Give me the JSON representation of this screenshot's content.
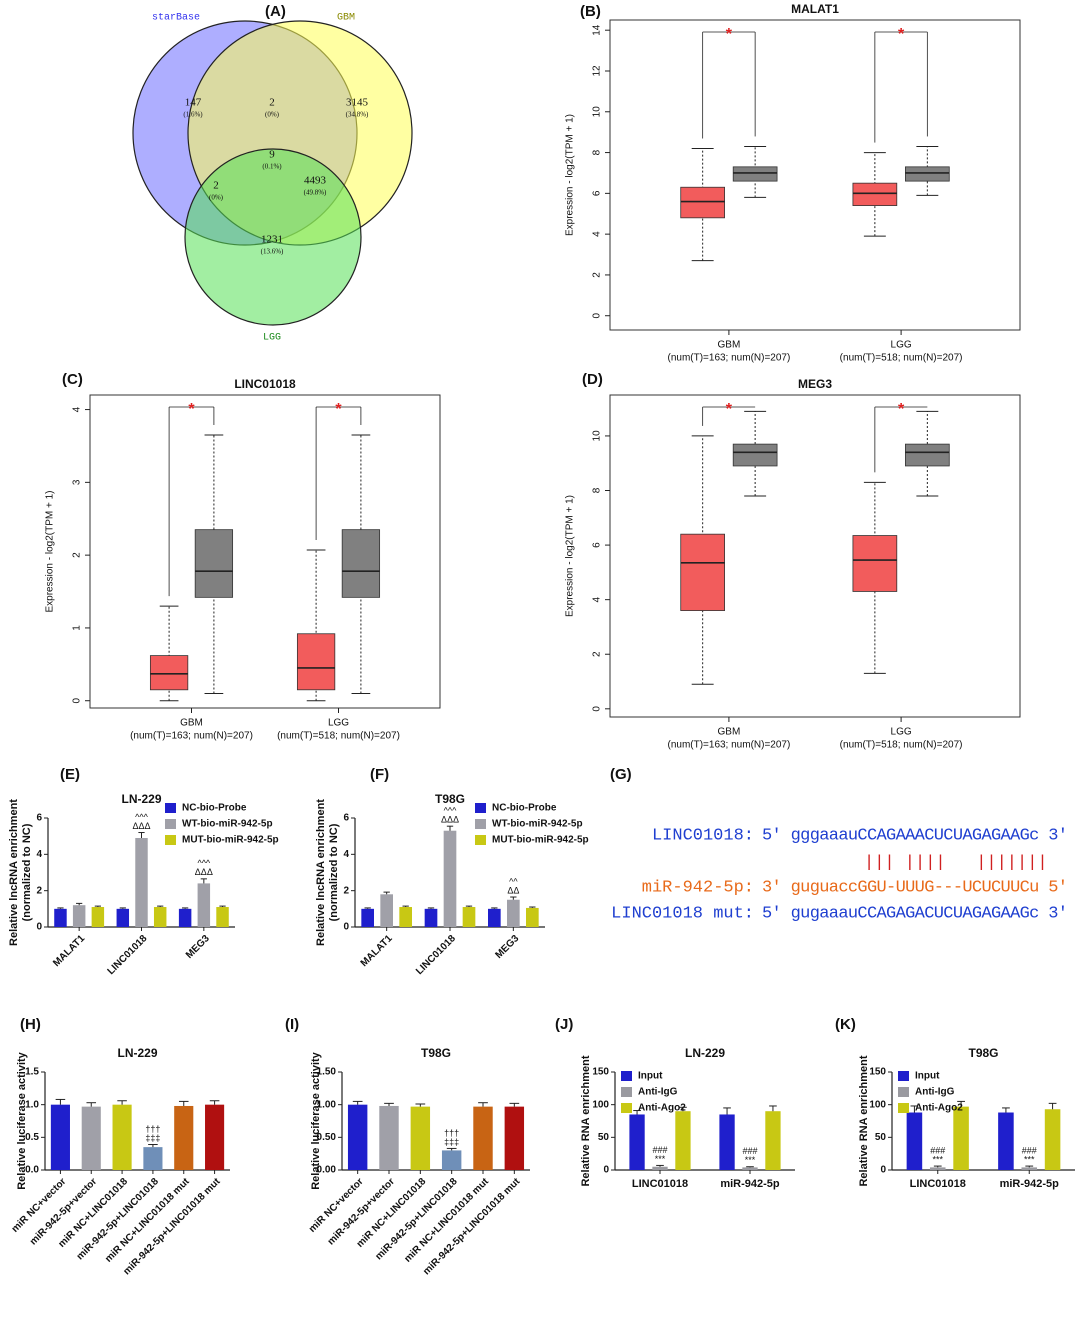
{
  "chart_data": [
    {
      "type": "venn",
      "panel": "(A)",
      "sets": [
        {
          "name": "starBase",
          "color": "#6b6bff",
          "text_color": "#3333ee"
        },
        {
          "name": "GBM",
          "color": "#ffff55",
          "text_color": "#8a8a00"
        },
        {
          "name": "LGG",
          "color": "#55e055",
          "text_color": "#1a8a1a"
        }
      ],
      "region_values": [
        147,
        2,
        3145,
        9,
        2,
        4493,
        1231
      ],
      "region_labels": [
        "(1.6%)",
        "(0%)",
        "(34.8%)",
        "(0.1%)",
        "(0%)",
        "(49.8%)",
        "(13.6%)"
      ]
    },
    {
      "type": "box",
      "panel": "(B)",
      "title": "MALAT1",
      "ylabel": "Expression - log2(TPM + 1)",
      "categories": [
        "GBM",
        "LGG"
      ],
      "category_notes": [
        "(num(T)=163; num(N)=207)",
        "(num(T)=518; num(N)=207)"
      ],
      "colors": [
        "#f25c5c",
        "#808080"
      ],
      "boxes": [
        [
          {
            "whisker_low": 2.7,
            "q1": 4.8,
            "median": 5.6,
            "q3": 6.3,
            "whisker_high": 8.2
          },
          {
            "whisker_low": 5.8,
            "q1": 6.6,
            "median": 7.0,
            "q3": 7.3,
            "whisker_high": 8.3
          }
        ],
        [
          {
            "whisker_low": 3.9,
            "q1": 5.4,
            "median": 6.0,
            "q3": 6.5,
            "whisker_high": 8.0
          },
          {
            "whisker_low": 5.9,
            "q1": 6.6,
            "median": 7.0,
            "q3": 7.3,
            "whisker_high": 8.3
          }
        ]
      ],
      "annotations": [
        "*",
        "*"
      ],
      "ylim": [
        -0.7,
        14.5
      ],
      "yticks": [
        0,
        2,
        4,
        6,
        8,
        10,
        12,
        14
      ]
    },
    {
      "type": "box",
      "panel": "(C)",
      "title": "LINC01018",
      "ylabel": "Expression - log2(TPM + 1)",
      "categories": [
        "GBM",
        "LGG"
      ],
      "category_notes": [
        "(num(T)=163; num(N)=207)",
        "(num(T)=518; num(N)=207)"
      ],
      "colors": [
        "#f25c5c",
        "#808080"
      ],
      "boxes": [
        [
          {
            "whisker_low": 0,
            "q1": 0.15,
            "median": 0.37,
            "q3": 0.62,
            "whisker_high": 1.3
          },
          {
            "whisker_low": 0.1,
            "q1": 1.42,
            "median": 1.78,
            "q3": 2.35,
            "whisker_high": 3.65
          }
        ],
        [
          {
            "whisker_low": 0,
            "q1": 0.15,
            "median": 0.45,
            "q3": 0.92,
            "whisker_high": 2.07
          },
          {
            "whisker_low": 0.1,
            "q1": 1.42,
            "median": 1.78,
            "q3": 2.35,
            "whisker_high": 3.65
          }
        ]
      ],
      "annotations": [
        "*",
        "*"
      ],
      "ylim": [
        -0.1,
        4.2
      ],
      "yticks": [
        0,
        1,
        2,
        3,
        4
      ]
    },
    {
      "type": "box",
      "panel": "(D)",
      "title": "MEG3",
      "ylabel": "Expression - log2(TPM + 1)",
      "categories": [
        "GBM",
        "LGG"
      ],
      "category_notes": [
        "(num(T)=163; num(N)=207)",
        "(num(T)=518; num(N)=207)"
      ],
      "colors": [
        "#f25c5c",
        "#808080"
      ],
      "boxes": [
        [
          {
            "whisker_low": 0.9,
            "q1": 3.6,
            "median": 5.35,
            "q3": 6.4,
            "whisker_high": 10.0
          },
          {
            "whisker_low": 7.8,
            "q1": 8.9,
            "median": 9.4,
            "q3": 9.7,
            "whisker_high": 10.9
          }
        ],
        [
          {
            "whisker_low": 1.3,
            "q1": 4.3,
            "median": 5.45,
            "q3": 6.35,
            "whisker_high": 8.3
          },
          {
            "whisker_low": 7.8,
            "q1": 8.9,
            "median": 9.4,
            "q3": 9.7,
            "whisker_high": 10.9
          }
        ]
      ],
      "annotations": [
        "*",
        "*"
      ],
      "ylim": [
        -0.3,
        11.5
      ],
      "yticks": [
        0,
        2,
        4,
        6,
        8,
        10
      ]
    },
    {
      "type": "bar",
      "panel": "(E)",
      "title": "LN-229",
      "ylabel": [
        "Relative lncRNA enrichment",
        "(normalized to NC)"
      ],
      "categories": [
        "MALAT1",
        "LINC01018",
        "MEG3"
      ],
      "series": [
        {
          "name": "NC-bio-Probe",
          "color": "#1f1fcc",
          "values": [
            1,
            1,
            1
          ],
          "errors": [
            0.05,
            0.05,
            0.05
          ]
        },
        {
          "name": "WT-bio-miR-942-5p",
          "color": "#a0a0a8",
          "values": [
            1.2,
            4.9,
            2.4
          ],
          "errors": [
            0.1,
            0.3,
            0.25
          ],
          "annotations": [
            null,
            [
              "^^^",
              "ΔΔΔ"
            ],
            [
              "^^^",
              "ΔΔΔ"
            ]
          ]
        },
        {
          "name": "MUT-bio-miR-942-5p",
          "color": "#c8c814",
          "values": [
            1.1,
            1.1,
            1.1
          ],
          "errors": [
            0.05,
            0.05,
            0.05
          ]
        }
      ],
      "ylim": [
        0,
        6
      ],
      "yticks": [
        0,
        2,
        4,
        6
      ],
      "legend": "upper right"
    },
    {
      "type": "bar",
      "panel": "(F)",
      "title": "T98G",
      "ylabel": [
        "Relative lncRNA enrichment",
        "(normalized to NC)"
      ],
      "categories": [
        "MALAT1",
        "LINC01018",
        "MEG3"
      ],
      "series": [
        {
          "name": "NC-bio-Probe",
          "color": "#1f1fcc",
          "values": [
            1,
            1,
            1
          ],
          "errors": [
            0.05,
            0.05,
            0.05
          ]
        },
        {
          "name": "WT-bio-miR-942-5p",
          "color": "#a0a0a8",
          "values": [
            1.8,
            5.3,
            1.5
          ],
          "errors": [
            0.12,
            0.25,
            0.15
          ],
          "annotations": [
            null,
            [
              "^^^",
              "ΔΔΔ"
            ],
            [
              "^^",
              "ΔΔ"
            ]
          ]
        },
        {
          "name": "MUT-bio-miR-942-5p",
          "color": "#c8c814",
          "values": [
            1.1,
            1.1,
            1.05
          ],
          "errors": [
            0.05,
            0.05,
            0.05
          ]
        }
      ],
      "ylim": [
        0,
        6
      ],
      "yticks": [
        0,
        2,
        4,
        6
      ],
      "legend": "upper right"
    },
    {
      "type": "alignment",
      "panel": "(G)",
      "rows": [
        {
          "label": "LINC01018:",
          "sequence": "5' gggaaauCCAGAAACUCUAGAGAAGc 3'",
          "color": "#1f3fd0"
        },
        {
          "pairing": "||| ||||   |||||||",
          "color": "#d02020"
        },
        {
          "label": "miR-942-5p:",
          "sequence": "3' guguaccGGU-UUUG---UCUCUUCu 5'",
          "color": "#e86a1a"
        },
        {
          "label": "LINC01018 mut:",
          "sequence": "5' gugaaauCCAGAGACUCUAGAGAAGc 3'",
          "color": "#1f3fd0"
        }
      ]
    },
    {
      "type": "bar",
      "panel": "(H)",
      "title": "LN-229",
      "ylabel": [
        "Relative luciferase activity"
      ],
      "categories": [
        "miR NC+vector",
        "miR-942-5p+vector",
        "miR NC+LINC01018",
        "miR-942-5p+LINC01018",
        "miR NC+LINC01018 mut",
        "miR-942-5p+LINC01018 mut"
      ],
      "values": [
        1.0,
        0.97,
        1.0,
        0.35,
        0.98,
        1.0
      ],
      "errors": [
        0.08,
        0.06,
        0.06,
        0.04,
        0.07,
        0.06
      ],
      "colors": [
        "#1f1fcc",
        "#a0a0a8",
        "#c8c814",
        "#6f8fb8",
        "#c86414",
        "#b01010"
      ],
      "annotations": [
        null,
        null,
        null,
        [
          "†††",
          "‡‡‡"
        ],
        null,
        null
      ],
      "ylim": [
        0,
        1.5
      ],
      "yticks": [
        {
          "value": 0,
          "label": "0.0"
        },
        {
          "value": 0.5,
          "label": "0.5"
        },
        {
          "value": 1,
          "label": "1.0"
        },
        {
          "value": 1.5,
          "label": "1.5"
        }
      ]
    },
    {
      "type": "bar",
      "panel": "(I)",
      "title": "T98G",
      "ylabel": [
        "Relative luciferase activity"
      ],
      "categories": [
        "miR NC+vector",
        "miR-942-5p+vector",
        "miR NC+LINC01018",
        "miR-942-5p+LINC01018",
        "miR NC+LINC01018 mut",
        "miR-942-5p+LINC01018 mut"
      ],
      "values": [
        1.0,
        0.98,
        0.97,
        0.3,
        0.97,
        0.97
      ],
      "errors": [
        0.05,
        0.04,
        0.04,
        0.03,
        0.06,
        0.05
      ],
      "colors": [
        "#1f1fcc",
        "#a0a0a8",
        "#c8c814",
        "#6f8fb8",
        "#c86414",
        "#b01010"
      ],
      "annotations": [
        null,
        null,
        null,
        [
          "†††",
          "‡‡‡"
        ],
        null,
        null
      ],
      "ylim": [
        0,
        1.5
      ],
      "yticks": [
        {
          "value": 0,
          "label": "0.00"
        },
        {
          "value": 0.5,
          "label": "0.50"
        },
        {
          "value": 1,
          "label": "1.00"
        },
        {
          "value": 1.5,
          "label": "1.50"
        }
      ]
    },
    {
      "type": "bar",
      "panel": "(J)",
      "title": "LN-229",
      "ylabel": [
        "Relative RNA enrichment"
      ],
      "categories": [
        "LINC01018",
        "miR-942-5p"
      ],
      "series": [
        {
          "name": "Input",
          "color": "#1f1fcc",
          "values": [
            85,
            85
          ],
          "errors": [
            6,
            10
          ]
        },
        {
          "name": "Anti-IgG",
          "color": "#9a9aa0",
          "values": [
            5,
            4
          ],
          "errors": [
            2,
            1
          ],
          "annotations": [
            [
              "###",
              "***"
            ],
            [
              "###",
              "***"
            ]
          ]
        },
        {
          "name": "Anti-Ago2",
          "color": "#c8c814",
          "values": [
            90,
            90
          ],
          "errors": [
            6,
            8
          ]
        }
      ],
      "ylim": [
        0,
        150
      ],
      "yticks": [
        0,
        50,
        100,
        150
      ],
      "legend": "upper left"
    },
    {
      "type": "bar",
      "panel": "(K)",
      "title": "T98G",
      "ylabel": [
        "Relative RNA enrichment"
      ],
      "categories": [
        "LINC01018",
        "miR-942-5p"
      ],
      "series": [
        {
          "name": "Input",
          "color": "#1f1fcc",
          "values": [
            88,
            88
          ],
          "errors": [
            10,
            7
          ]
        },
        {
          "name": "Anti-IgG",
          "color": "#9a9aa0",
          "values": [
            4,
            4
          ],
          "errors": [
            2,
            2
          ],
          "annotations": [
            [
              "###",
              "***"
            ],
            [
              "###",
              "***"
            ]
          ]
        },
        {
          "name": "Anti-Ago2",
          "color": "#c8c814",
          "values": [
            97,
            93
          ],
          "errors": [
            8,
            9
          ]
        }
      ],
      "ylim": [
        0,
        150
      ],
      "yticks": [
        0,
        50,
        100,
        150
      ],
      "legend": "upper left"
    }
  ]
}
